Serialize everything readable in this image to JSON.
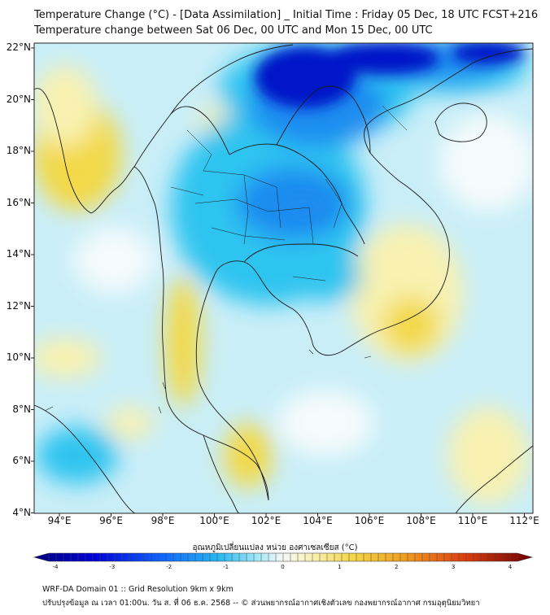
{
  "title_line1": "Temperature Change (°C) - [Data Assimilation] _ Initial Time : Friday 05 Dec, 18 UTC FCST+216",
  "title_line2": "Temperature change between Sat 06 Dec, 00 UTC and Mon 15 Dec, 00 UTC",
  "lat_labels": [
    "22°N",
    "20°N",
    "18°N",
    "16°N",
    "14°N",
    "12°N",
    "10°N",
    "8°N",
    "6°N",
    "4°N"
  ],
  "lon_labels": [
    "94°E",
    "96°E",
    "98°E",
    "100°E",
    "102°E",
    "104°E",
    "106°E",
    "108°E",
    "110°E",
    "112°E"
  ],
  "colorbar": {
    "label": "อุณหภูมิเปลี่ยนแปลง หน่วย องศาเซลเซียส (°C)",
    "ticks": [
      "-4",
      "-3",
      "-2",
      "-1",
      "0",
      "1",
      "2",
      "3",
      "4"
    ],
    "colors": [
      "#000080",
      "#0000d0",
      "#0040ff",
      "#1e90ff",
      "#29c6f2",
      "#7fe0f5",
      "#c8f0f8",
      "#f8f8f8",
      "#f8f4c0",
      "#f6e67a",
      "#f2c230",
      "#f09010",
      "#e84010",
      "#c81010",
      "#780000"
    ]
  },
  "footer_line1": "WRF-DA Domain 01 :: Grid Resolution 9km x 9km",
  "footer_line2": "ปรับปรุงข้อมูล ณ เวลา 01:00น. วัน ส. ที่ 06 ธ.ค. 2568 -- © ส่วนพยากรณ์อากาศเชิงตัวเลข กองพยากรณ์อากาศ กรมอุตุนิยมวิทยา",
  "field_colors": {
    "background": "#c9eef8",
    "strong_cooling": "#0015c8",
    "moderate_cooling": "#1e8cf0",
    "light_cooling": "#2ec4f0",
    "neutral": "#f5fbfc",
    "light_warming": "#f8f1b0",
    "moderate_warming": "#f3d94a",
    "coastline": "#1a1a1a"
  }
}
